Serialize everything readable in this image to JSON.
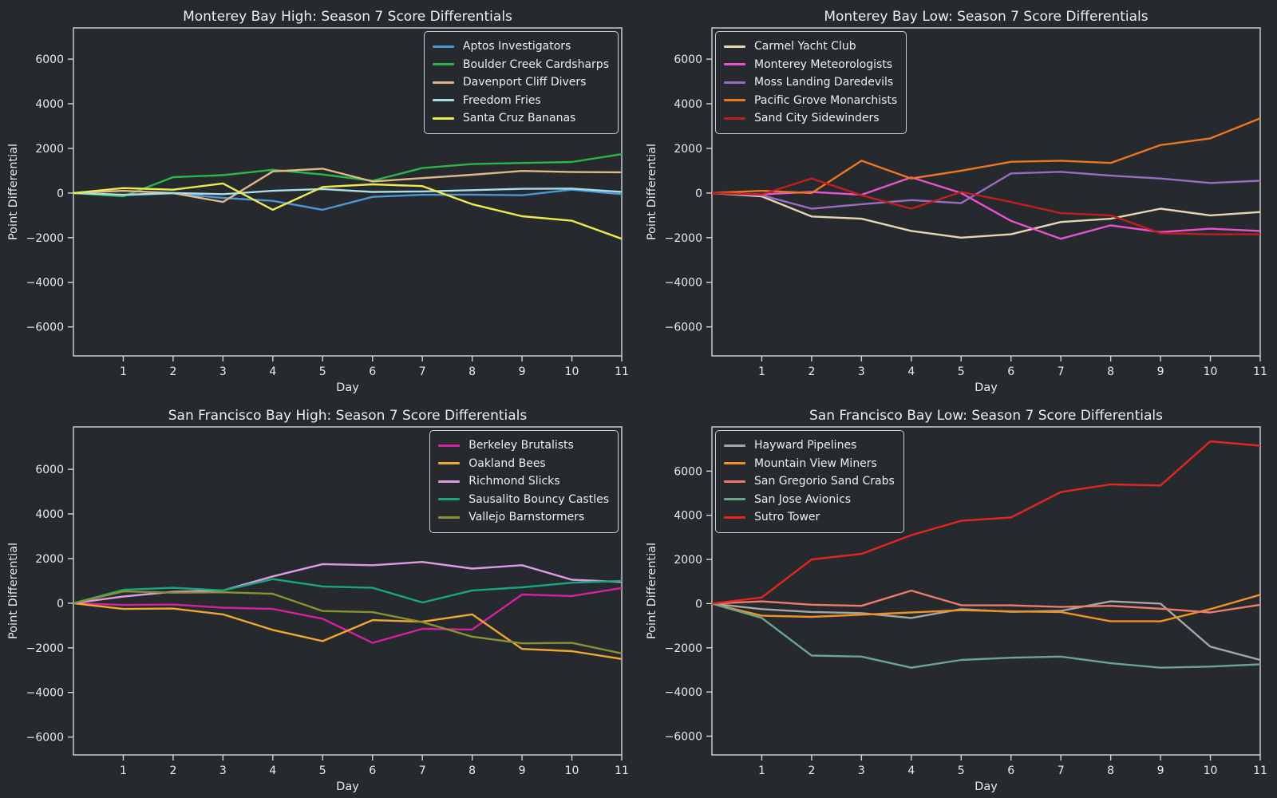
{
  "figure": {
    "background": "#262a2f",
    "spine_color": "#d2d5d8",
    "text_color": "#e8ebee"
  },
  "axes": {
    "xlabel": "Day",
    "ylabel": "Point Differential",
    "xticks": [
      1,
      2,
      3,
      4,
      5,
      6,
      7,
      8,
      9,
      10,
      11
    ],
    "xticklabels": [
      "1",
      "2",
      "3",
      "4",
      "5",
      "6",
      "7",
      "8",
      "9",
      "10",
      "11"
    ],
    "yticks": [
      -6000,
      -4000,
      -2000,
      0,
      2000,
      4000,
      6000
    ],
    "yticklabels": [
      "−6000",
      "−4000",
      "−2000",
      "0",
      "2000",
      "4000",
      "6000"
    ]
  },
  "chart_data": [
    {
      "id": "monterey-bay-high",
      "type": "line",
      "title": "Monterey Bay High: Season 7 Score Differentials",
      "legend_position": "right",
      "xlim": [
        0,
        11
      ],
      "ylim": [
        -7300,
        7400
      ],
      "x": [
        0,
        1,
        2,
        3,
        4,
        5,
        6,
        7,
        8,
        9,
        10,
        11
      ],
      "series": [
        {
          "name": "Aptos Investigators",
          "color": "#4a98d3",
          "values": [
            0,
            -100,
            -10,
            -220,
            -350,
            -750,
            -170,
            -80,
            -70,
            -100,
            150,
            -50
          ]
        },
        {
          "name": "Boulder Creek Cardsharps",
          "color": "#2bb54a",
          "values": [
            0,
            -150,
            710,
            800,
            1040,
            830,
            550,
            1120,
            1300,
            1350,
            1390,
            1740
          ]
        },
        {
          "name": "Davenport Cliff Divers",
          "color": "#deb887",
          "values": [
            0,
            100,
            0,
            -400,
            970,
            1090,
            520,
            670,
            820,
            990,
            940,
            930
          ]
        },
        {
          "name": "Freedom Fries",
          "color": "#aadce6",
          "values": [
            0,
            -80,
            0,
            -50,
            100,
            180,
            50,
            70,
            130,
            190,
            200,
            50
          ]
        },
        {
          "name": "Santa Cruz Bananas",
          "color": "#ede94f",
          "values": [
            0,
            220,
            150,
            430,
            -750,
            270,
            390,
            310,
            -500,
            -1040,
            -1240,
            -2050
          ]
        }
      ]
    },
    {
      "id": "monterey-bay-low",
      "type": "line",
      "title": "Monterey Bay Low: Season 7 Score Differentials",
      "legend_position": "left",
      "xlim": [
        0,
        11
      ],
      "ylim": [
        -7300,
        7400
      ],
      "x": [
        0,
        1,
        2,
        3,
        4,
        5,
        6,
        7,
        8,
        9,
        10,
        11
      ],
      "series": [
        {
          "name": "Carmel Yacht Club",
          "color": "#e6d7b2",
          "values": [
            0,
            -150,
            -1050,
            -1150,
            -1700,
            -2000,
            -1850,
            -1300,
            -1150,
            -700,
            -1000,
            -850
          ]
        },
        {
          "name": "Monterey Meteorologists",
          "color": "#e852d0",
          "values": [
            0,
            -60,
            50,
            -80,
            700,
            0,
            -1250,
            -2050,
            -1450,
            -1750,
            -1600,
            -1700
          ]
        },
        {
          "name": "Moss Landing Daredevils",
          "color": "#9a6bbf",
          "values": [
            0,
            -100,
            -700,
            -500,
            -320,
            -450,
            880,
            950,
            780,
            650,
            450,
            550
          ]
        },
        {
          "name": "Pacific Grove Monarchists",
          "color": "#ee7621",
          "values": [
            0,
            100,
            0,
            1450,
            650,
            1000,
            1400,
            1450,
            1350,
            2150,
            2450,
            3350
          ]
        },
        {
          "name": "Sand City Sidewinders",
          "color": "#bf1f1f",
          "values": [
            0,
            -60,
            650,
            -100,
            -700,
            50,
            -400,
            -900,
            -1000,
            -1800,
            -1850,
            -1850
          ]
        }
      ]
    },
    {
      "id": "san-francisco-bay-high",
      "type": "line",
      "title": "San Francisco Bay High: Season 7 Score Differentials",
      "legend_position": "right",
      "xlim": [
        0,
        11
      ],
      "ylim": [
        -6800,
        7900
      ],
      "x": [
        0,
        1,
        2,
        3,
        4,
        5,
        6,
        7,
        8,
        9,
        10,
        11
      ],
      "series": [
        {
          "name": "Berkeley Brutalists",
          "color": "#d4219c",
          "values": [
            0,
            -80,
            -60,
            -200,
            -260,
            -700,
            -1780,
            -1150,
            -1180,
            390,
            320,
            680
          ]
        },
        {
          "name": "Oakland Bees",
          "color": "#f2a72e",
          "values": [
            0,
            -260,
            -240,
            -500,
            -1200,
            -1700,
            -760,
            -830,
            -500,
            -2050,
            -2150,
            -2500
          ]
        },
        {
          "name": "Richmond Slicks",
          "color": "#dc9ce4",
          "values": [
            0,
            300,
            510,
            570,
            1200,
            1750,
            1700,
            1850,
            1550,
            1700,
            1050,
            950
          ]
        },
        {
          "name": "Sausalito Bouncy Castles",
          "color": "#16a87c",
          "values": [
            0,
            600,
            690,
            570,
            1080,
            750,
            690,
            30,
            570,
            710,
            920,
            1000
          ]
        },
        {
          "name": "Vallejo Barnstormers",
          "color": "#8a9131",
          "values": [
            0,
            530,
            470,
            490,
            420,
            -350,
            -400,
            -850,
            -1500,
            -1800,
            -1780,
            -2250
          ]
        }
      ]
    },
    {
      "id": "san-francisco-bay-low",
      "type": "line",
      "title": "San Francisco Bay Low: Season 7 Score Differentials",
      "legend_position": "left",
      "xlim": [
        0,
        11
      ],
      "ylim": [
        -6850,
        8000
      ],
      "x": [
        0,
        1,
        2,
        3,
        4,
        5,
        6,
        7,
        8,
        9,
        10,
        11
      ],
      "series": [
        {
          "name": "Hayward Pipelines",
          "color": "#a6a6a6",
          "values": [
            0,
            -250,
            -380,
            -430,
            -650,
            -250,
            -370,
            -330,
            100,
            0,
            -1950,
            -2550
          ]
        },
        {
          "name": "Mountain View Miners",
          "color": "#ef9221",
          "values": [
            0,
            -550,
            -600,
            -500,
            -400,
            -300,
            -350,
            -380,
            -800,
            -800,
            -250,
            400
          ]
        },
        {
          "name": "San Gregorio Sand Crabs",
          "color": "#ec7a6e",
          "values": [
            0,
            100,
            -50,
            -100,
            590,
            -70,
            -80,
            -150,
            -100,
            -230,
            -400,
            -50
          ]
        },
        {
          "name": "San Jose Avionics",
          "color": "#6aa68c",
          "values": [
            0,
            -650,
            -2350,
            -2400,
            -2900,
            -2550,
            -2450,
            -2400,
            -2700,
            -2900,
            -2850,
            -2750
          ]
        },
        {
          "name": "Sutro Tower",
          "color": "#e62420",
          "values": [
            0,
            280,
            2000,
            2250,
            3100,
            3750,
            3900,
            5050,
            5400,
            5350,
            7350,
            7150
          ]
        }
      ]
    }
  ]
}
